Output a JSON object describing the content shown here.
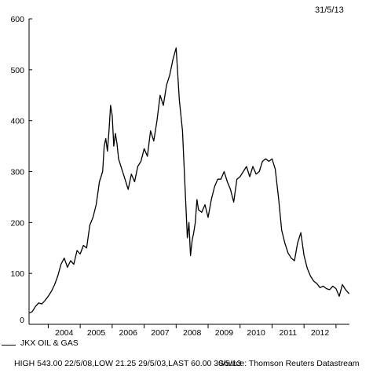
{
  "date_stamp": "31/5/13",
  "legend": {
    "label": "JKX OIL & GAS"
  },
  "footer": {
    "stats": "HIGH 543.00 22/5/08,LOW 21.25 29/5/03,LAST 60.00 30/5/13",
    "source": "Source: Thomson Reuters Datastream"
  },
  "colors": {
    "line": "#000000",
    "axis": "#000000"
  },
  "chart_data": {
    "type": "line",
    "title": "",
    "xlabel": "",
    "ylabel": "",
    "xlim": [
      2003.4,
      2013.42
    ],
    "ylim": [
      0,
      600
    ],
    "y_ticks": [
      0,
      100,
      200,
      300,
      400,
      500,
      600
    ],
    "x_tick_labels": [
      "2004",
      "2005",
      "2006",
      "2007",
      "2008",
      "2009",
      "2010",
      "2011",
      "2012"
    ],
    "series": [
      {
        "name": "JKX OIL & GAS",
        "x": [
          2003.41,
          2003.5,
          2003.6,
          2003.7,
          2003.8,
          2003.9,
          2004.0,
          2004.1,
          2004.2,
          2004.3,
          2004.4,
          2004.5,
          2004.6,
          2004.7,
          2004.8,
          2004.9,
          2005.0,
          2005.1,
          2005.2,
          2005.3,
          2005.4,
          2005.5,
          2005.6,
          2005.7,
          2005.75,
          2005.8,
          2005.85,
          2005.9,
          2005.95,
          2006.0,
          2006.05,
          2006.1,
          2006.15,
          2006.2,
          2006.3,
          2006.4,
          2006.5,
          2006.6,
          2006.7,
          2006.8,
          2006.9,
          2007.0,
          2007.1,
          2007.2,
          2007.3,
          2007.4,
          2007.5,
          2007.6,
          2007.7,
          2007.8,
          2007.9,
          2008.0,
          2008.1,
          2008.2,
          2008.3,
          2008.35,
          2008.4,
          2008.45,
          2008.5,
          2008.55,
          2008.6,
          2008.65,
          2008.7,
          2008.8,
          2008.9,
          2009.0,
          2009.1,
          2009.2,
          2009.3,
          2009.4,
          2009.5,
          2009.6,
          2009.7,
          2009.8,
          2009.9,
          2010.0,
          2010.1,
          2010.2,
          2010.3,
          2010.4,
          2010.5,
          2010.6,
          2010.7,
          2010.8,
          2010.9,
          2011.0,
          2011.1,
          2011.2,
          2011.3,
          2011.4,
          2011.5,
          2011.6,
          2011.7,
          2011.8,
          2011.9,
          2012.0,
          2012.1,
          2012.2,
          2012.3,
          2012.4,
          2012.5,
          2012.6,
          2012.7,
          2012.8,
          2012.9,
          2013.0,
          2013.1,
          2013.2,
          2013.3,
          2013.41
        ],
        "values": [
          22,
          25,
          35,
          42,
          40,
          47,
          55,
          65,
          78,
          95,
          118,
          130,
          112,
          125,
          118,
          145,
          138,
          155,
          150,
          195,
          210,
          235,
          280,
          300,
          350,
          365,
          340,
          380,
          430,
          410,
          350,
          375,
          355,
          325,
          305,
          285,
          265,
          295,
          280,
          310,
          320,
          345,
          330,
          380,
          360,
          400,
          450,
          430,
          470,
          490,
          520,
          543,
          440,
          380,
          240,
          170,
          200,
          135,
          165,
          180,
          200,
          245,
          225,
          220,
          235,
          210,
          245,
          270,
          285,
          285,
          300,
          280,
          265,
          240,
          285,
          290,
          300,
          310,
          290,
          310,
          295,
          300,
          320,
          325,
          320,
          325,
          305,
          250,
          185,
          160,
          140,
          130,
          125,
          160,
          180,
          135,
          110,
          95,
          85,
          80,
          72,
          75,
          70,
          68,
          75,
          70,
          55,
          78,
          68,
          60
        ]
      }
    ]
  }
}
